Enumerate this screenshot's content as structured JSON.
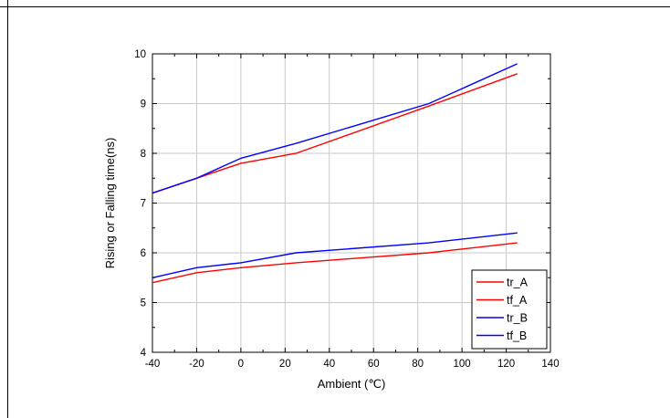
{
  "chart_data": {
    "type": "line",
    "title": "",
    "xlabel": "Ambient (℃)",
    "ylabel": "Rising or Falling time(ns)",
    "xlim": [
      -40,
      140
    ],
    "ylim": [
      4,
      10
    ],
    "xticks": [
      -40,
      -20,
      0,
      20,
      40,
      60,
      80,
      100,
      120,
      140
    ],
    "yticks": [
      4,
      5,
      6,
      7,
      8,
      9,
      10
    ],
    "xtick_labels": [
      "-40",
      "-20",
      "0",
      "20",
      "40",
      "60",
      "80",
      "100",
      "120",
      "140"
    ],
    "ytick_labels": [
      "4",
      "5",
      "6",
      "7",
      "8",
      "9",
      "10"
    ],
    "grid": true,
    "legend_position": "bottom-right",
    "series": [
      {
        "name": "tr_A",
        "color": "#ff0000",
        "x": [
          -40,
          -20,
          0,
          25,
          85,
          125
        ],
        "y": [
          7.2,
          7.5,
          7.8,
          8.0,
          8.95,
          9.6
        ]
      },
      {
        "name": "tf_A",
        "color": "#ff0000",
        "x": [
          -40,
          -20,
          0,
          25,
          85,
          125
        ],
        "y": [
          5.4,
          5.6,
          5.7,
          5.8,
          6.0,
          6.2
        ]
      },
      {
        "name": "tr_B",
        "color": "#0000ff",
        "x": [
          -40,
          -20,
          0,
          25,
          85,
          125
        ],
        "y": [
          7.2,
          7.5,
          7.9,
          8.2,
          9.0,
          9.8
        ]
      },
      {
        "name": "tf_B",
        "color": "#0000ff",
        "x": [
          -40,
          -20,
          0,
          25,
          85,
          125
        ],
        "y": [
          5.5,
          5.7,
          5.8,
          6.0,
          6.2,
          6.4
        ]
      }
    ]
  }
}
